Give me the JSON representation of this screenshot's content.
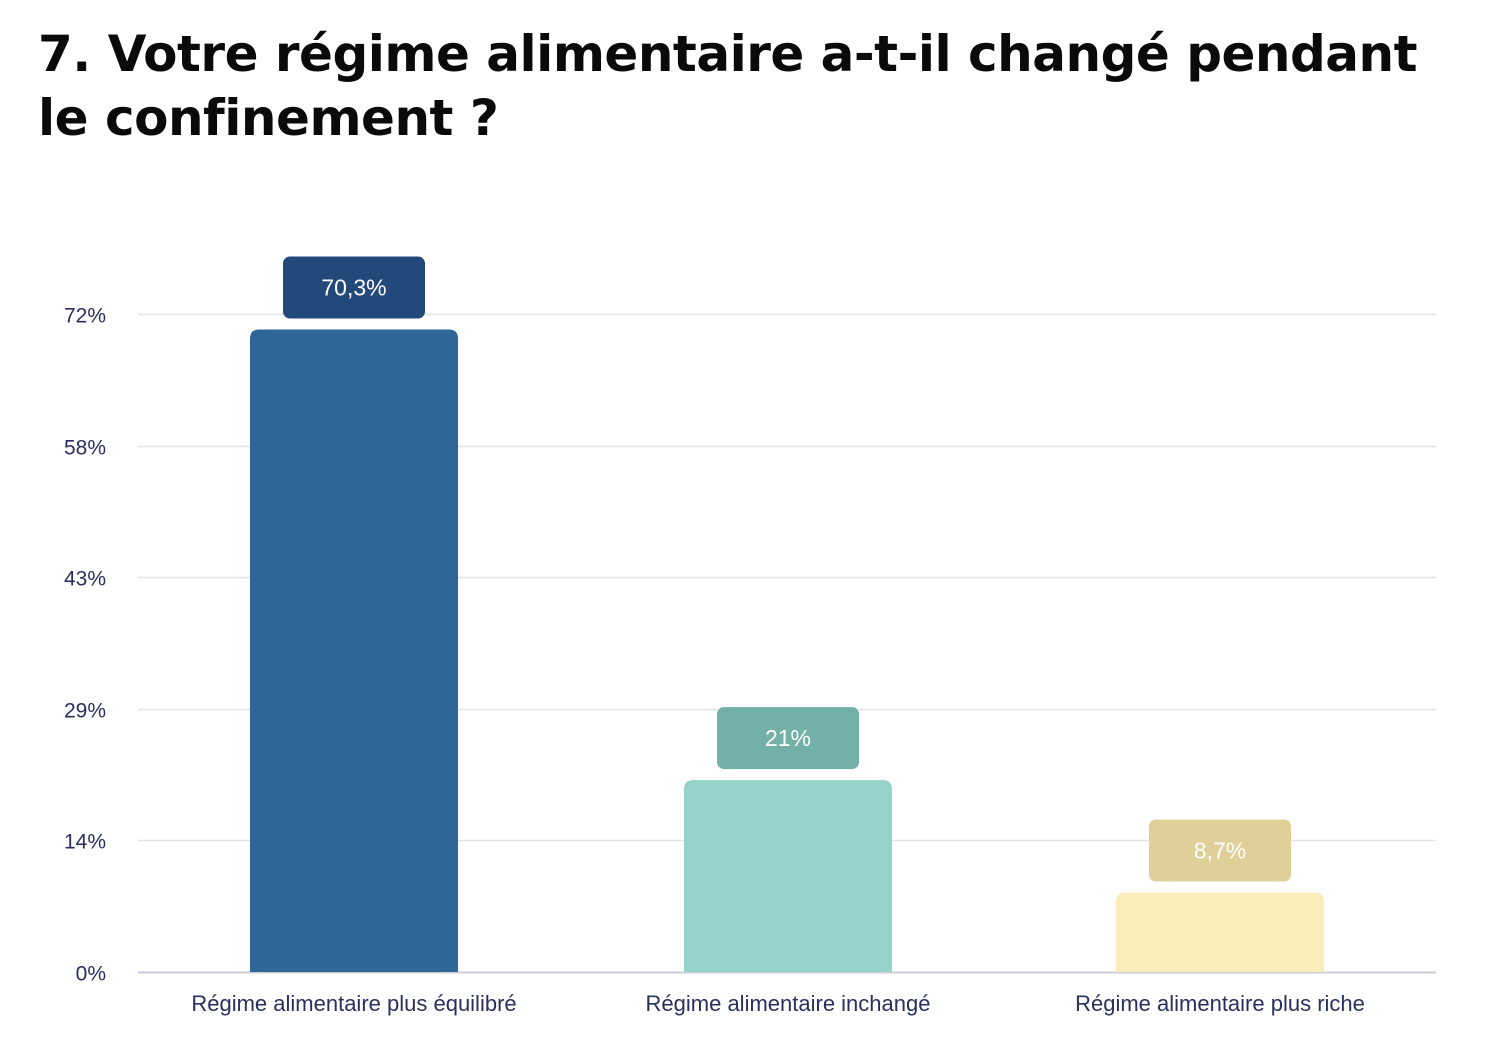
{
  "chart_data": {
    "type": "bar",
    "title": "7. Votre régime alimentaire a-t-il changé pendant le confinement ?",
    "categories": [
      "Régime alimentaire plus équilibré",
      "Régime alimentaire inchangé",
      "Régime alimentaire plus riche"
    ],
    "values": [
      70.3,
      21,
      8.7
    ],
    "value_labels": [
      "70,3%",
      "21%",
      "8,7%"
    ],
    "y_ticks": [
      0,
      14.4,
      28.8,
      43.2,
      57.6,
      72
    ],
    "y_tick_labels": [
      "0%",
      "14%",
      "29%",
      "43%",
      "58%",
      "72%"
    ],
    "ylim": [
      0,
      72
    ],
    "xlabel": "",
    "ylabel": "",
    "grid": true,
    "legend": "none",
    "colors": {
      "bars": [
        "#306598",
        "#95d2c9",
        "#fbedba"
      ],
      "labels": [
        "#23497b",
        "#72b0a8",
        "#dfd09a"
      ],
      "grid": "#e3e3e3",
      "axis": "#c9ced9",
      "text": "#2b2f5e"
    }
  }
}
